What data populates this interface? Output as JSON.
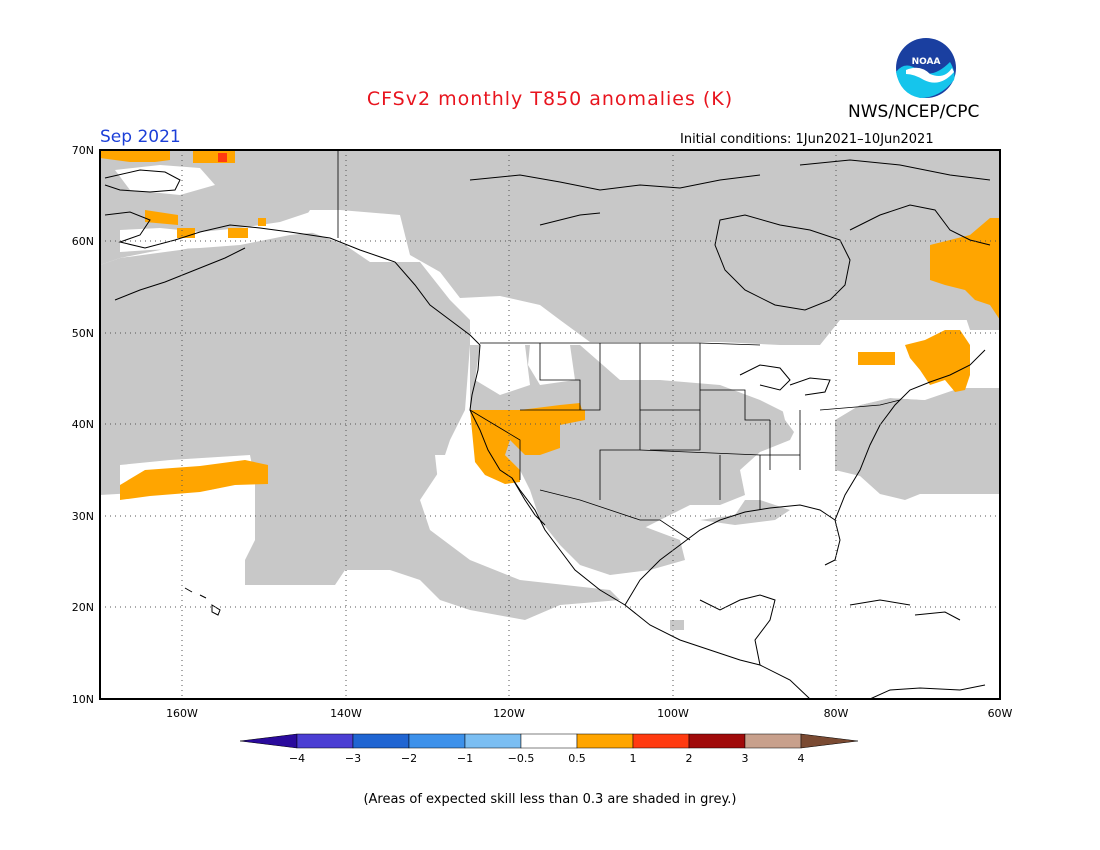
{
  "header": {
    "title": "CFSv2 monthly T850 anomalies (K)",
    "org": "NWS/NCEP/CPC",
    "month": "Sep 2021",
    "initial_conditions": "Initial conditions: 1Jun2021–10Jun2021",
    "logo_text": "NOAA"
  },
  "map": {
    "lon_range": [
      -170,
      -60
    ],
    "lat_range": [
      10,
      70
    ],
    "lat_ticks": [
      "10N",
      "20N",
      "30N",
      "40N",
      "50N",
      "60N",
      "70N"
    ],
    "lon_ticks": [
      "160W",
      "140W",
      "120W",
      "100W",
      "80W",
      "60W"
    ],
    "grid": "dotted",
    "colors": {
      "land_outline": "#000000",
      "low_skill_grey": "#c8c8c8",
      "anom_05_1": "#ffa500",
      "anom_1_2": "#ff3a10"
    }
  },
  "colorbar": {
    "labels": [
      "−4",
      "−3",
      "−2",
      "−1",
      "−0.5",
      "0.5",
      "1",
      "2",
      "3",
      "4"
    ],
    "colors": [
      "#2a0a9c",
      "#4b3ed3",
      "#2065d2",
      "#3d91ea",
      "#7bbef2",
      "#ffffff",
      "#ffa500",
      "#ff3a10",
      "#a00a0a",
      "#c8a08c",
      "#7a4a32"
    ]
  },
  "footnote": "(Areas of expected skill less than 0.3 are shaded in grey.)"
}
